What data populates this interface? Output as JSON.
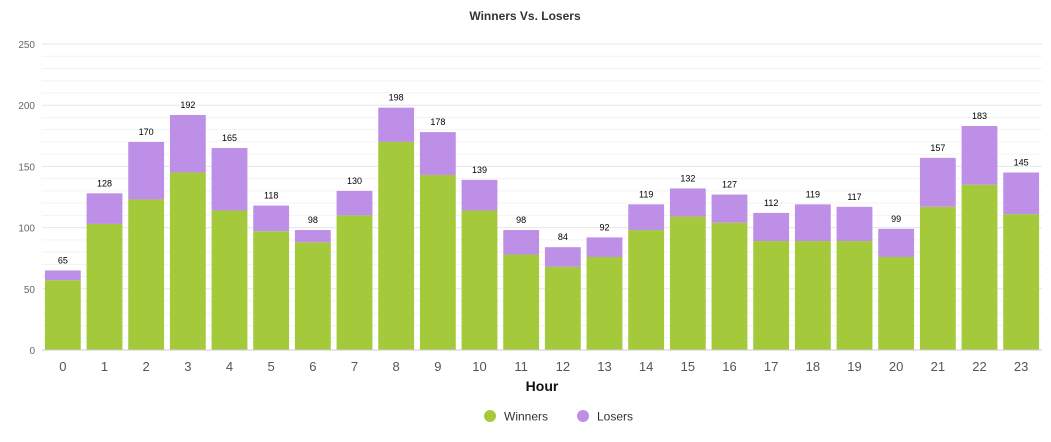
{
  "chart_data": {
    "type": "bar",
    "stacked": true,
    "title": "Winners Vs. Losers",
    "xlabel": "Hour",
    "ylabel": "",
    "ylim": [
      0,
      250
    ],
    "yticks": [
      "0",
      "50",
      "100",
      "150",
      "200",
      "250"
    ],
    "grid": true,
    "legend_position": "bottom-center",
    "categories": [
      "0",
      "1",
      "2",
      "3",
      "4",
      "5",
      "6",
      "7",
      "8",
      "9",
      "10",
      "11",
      "12",
      "13",
      "14",
      "15",
      "16",
      "17",
      "18",
      "19",
      "20",
      "21",
      "22",
      "23"
    ],
    "series": [
      {
        "name": "Winners",
        "color": "#a4c93a",
        "values": [
          57,
          103,
          123,
          145,
          114,
          97,
          88,
          110,
          170,
          143,
          114,
          78,
          68,
          76,
          98,
          109,
          104,
          89,
          89,
          89,
          76,
          117,
          135,
          111
        ]
      },
      {
        "name": "Losers",
        "color": "#be8fe6",
        "values": [
          8,
          25,
          47,
          47,
          51,
          21,
          10,
          20,
          28,
          35,
          25,
          20,
          16,
          16,
          21,
          23,
          23,
          23,
          30,
          28,
          23,
          40,
          48,
          34
        ]
      }
    ],
    "totals": [
      "65",
      "128",
      "170",
      "192",
      "165",
      "118",
      "98",
      "130",
      "198",
      "178",
      "139",
      "98",
      "84",
      "92",
      "119",
      "132",
      "127",
      "112",
      "119",
      "117",
      "99",
      "157",
      "183",
      "145"
    ]
  }
}
